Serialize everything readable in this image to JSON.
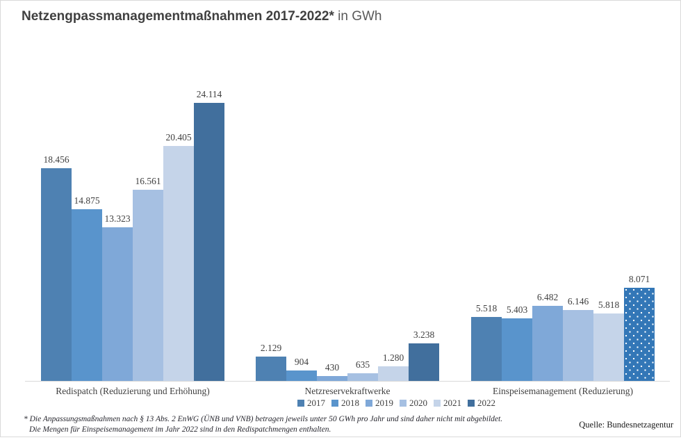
{
  "title": {
    "bold": "Netzengpassmanagementmaßnahmen 2017-2022*",
    "regular": " in GWh"
  },
  "footnote": {
    "line1": "* Die Anpassungsmaßnahmen nach § 13 Abs. 2 EnWG (ÜNB und VNB) betragen jeweils unter 50 GWh pro Jahr und sind daher nicht mit abgebildet.",
    "line2": "Die Mengen für Einspeisemanagement im Jahr 2022 sind in den Redispatchmengen enthalten."
  },
  "source": "Quelle: Bundesnetzagentur",
  "chart_data": {
    "type": "bar",
    "unit": "GWh",
    "title": "Netzengpassmanagementmaßnahmen 2017-2022* in GWh",
    "grid": false,
    "legend_position": "bottom",
    "ylim": [
      0,
      24114
    ],
    "categories": [
      "Redispatch (Reduzierung und Erhöhung)",
      "Netzreservekraftwerke",
      "Einspeisemanagement (Reduzierung)"
    ],
    "series": [
      {
        "name": "2017",
        "color": "#4e81b2",
        "values": [
          18456,
          2129,
          5518
        ],
        "labels": [
          "18.456",
          "2.129",
          "5.518"
        ]
      },
      {
        "name": "2018",
        "color": "#5994cc",
        "values": [
          14875,
          904,
          5403
        ],
        "labels": [
          "14.875",
          "904",
          "5.403"
        ]
      },
      {
        "name": "2019",
        "color": "#7fa8d8",
        "values": [
          13323,
          430,
          6482
        ],
        "labels": [
          "13.323",
          "430",
          "6.482"
        ]
      },
      {
        "name": "2020",
        "color": "#a6c0e2",
        "values": [
          16561,
          635,
          6146
        ],
        "labels": [
          "16.561",
          "635",
          "6.146"
        ]
      },
      {
        "name": "2021",
        "color": "#c5d4e9",
        "values": [
          20405,
          1280,
          5818
        ],
        "labels": [
          "20.405",
          "1.280",
          "5.818"
        ]
      },
      {
        "name": "2022",
        "color": "#416f9d",
        "values": [
          24114,
          3238,
          8071
        ],
        "labels": [
          "24.114",
          "3.238",
          "8.071"
        ]
      }
    ],
    "dotted_bar": {
      "category_index": 2,
      "series_name": "2022",
      "fill": "#3377b7",
      "dot_color": "#ffffff"
    }
  }
}
